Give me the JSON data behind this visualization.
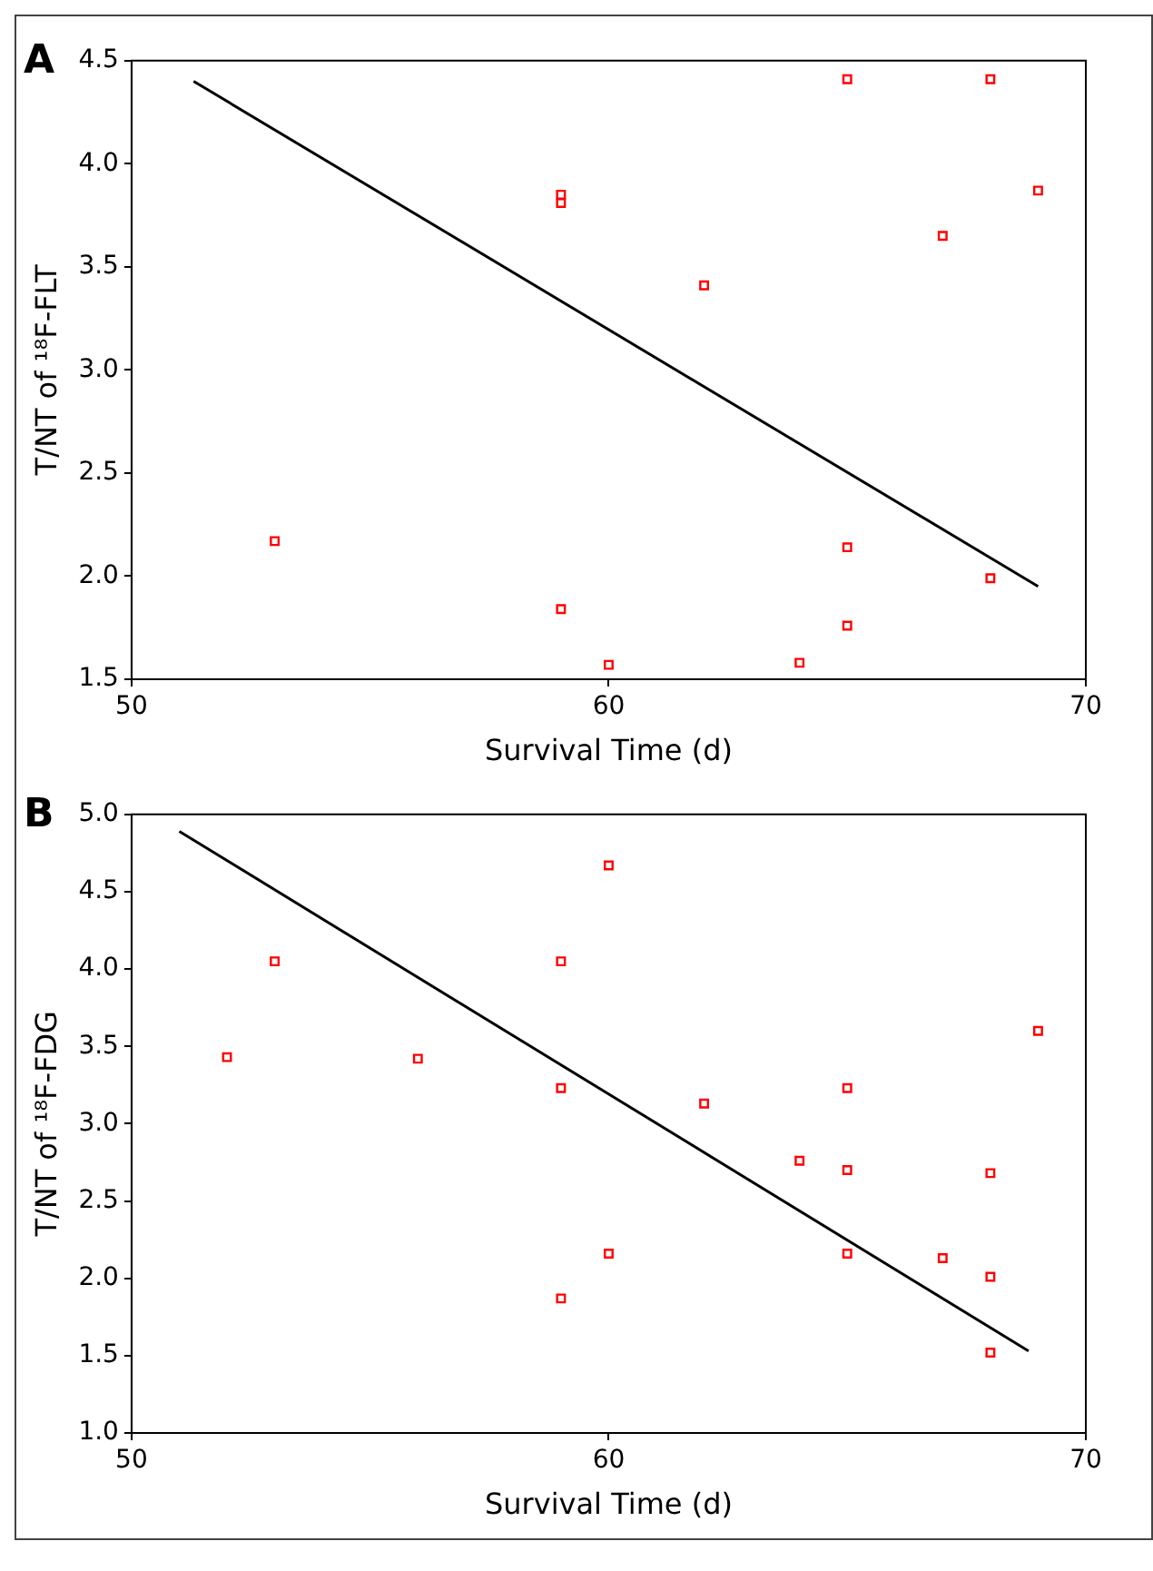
{
  "chart_data": [
    {
      "type": "scatter",
      "title": "A",
      "xlabel": "Survival Time (d)",
      "ylabel": "T/NT of ¹⁸F-FLT",
      "xlim": [
        50,
        70
      ],
      "xticks": [
        50,
        60,
        70
      ],
      "ylim": [
        1.5,
        4.5
      ],
      "yticks": [
        {
          "value": 1.5,
          "label": "1.5"
        },
        {
          "value": 2,
          "label": "2.0"
        },
        {
          "value": 2.5,
          "label": "2.5"
        },
        {
          "value": 3,
          "label": "3.0"
        },
        {
          "value": 3.5,
          "label": "3.5"
        },
        {
          "value": 4,
          "label": "4.0"
        },
        {
          "value": 4.5,
          "label": "4.5"
        }
      ],
      "grid": false,
      "legend": false,
      "series": [
        {
          "marker": "square",
          "color": "#ff0000",
          "x": [
            53,
            59,
            59,
            59,
            60,
            62,
            64,
            65,
            65,
            65,
            67,
            68,
            68,
            69
          ],
          "values": [
            2.17,
            3.85,
            3.81,
            1.84,
            1.57,
            3.41,
            1.58,
            4.41,
            2.14,
            1.76,
            3.65,
            4.41,
            1.99,
            3.87
          ]
        },
        {
          "type": "line",
          "marker": "none",
          "color": "#000000",
          "x": [
            51.3,
            69
          ],
          "values": [
            4.4,
            1.95
          ]
        }
      ]
    },
    {
      "type": "scatter",
      "title": "B",
      "xlabel": "Survival Time (d)",
      "ylabel": "T/NT of ¹⁸F-FDG",
      "xlim": [
        50,
        70
      ],
      "xticks": [
        50,
        60,
        70
      ],
      "ylim": [
        1,
        5
      ],
      "yticks": [
        {
          "value": 1,
          "label": "1.0"
        },
        {
          "value": 1.5,
          "label": "1.5"
        },
        {
          "value": 2,
          "label": "2.0"
        },
        {
          "value": 2.5,
          "label": "2.5"
        },
        {
          "value": 3,
          "label": "3.0"
        },
        {
          "value": 3.5,
          "label": "3.5"
        },
        {
          "value": 4,
          "label": "4.0"
        },
        {
          "value": 4.5,
          "label": "4.5"
        },
        {
          "value": 5,
          "label": "5.0"
        }
      ],
      "grid": false,
      "legend": false,
      "series": [
        {
          "marker": "square",
          "color": "#ff0000",
          "x": [
            52,
            53,
            56,
            59,
            59,
            59,
            60,
            60,
            62,
            64,
            65,
            65,
            65,
            67,
            68,
            68,
            68,
            69
          ],
          "values": [
            3.43,
            4.05,
            3.42,
            4.05,
            3.23,
            1.87,
            4.67,
            2.16,
            3.13,
            2.76,
            3.23,
            2.7,
            2.16,
            2.13,
            2.68,
            2.01,
            1.52,
            3.6
          ]
        },
        {
          "type": "line",
          "marker": "none",
          "color": "#000000",
          "x": [
            51,
            68.8
          ],
          "values": [
            4.89,
            1.53
          ]
        }
      ]
    }
  ]
}
